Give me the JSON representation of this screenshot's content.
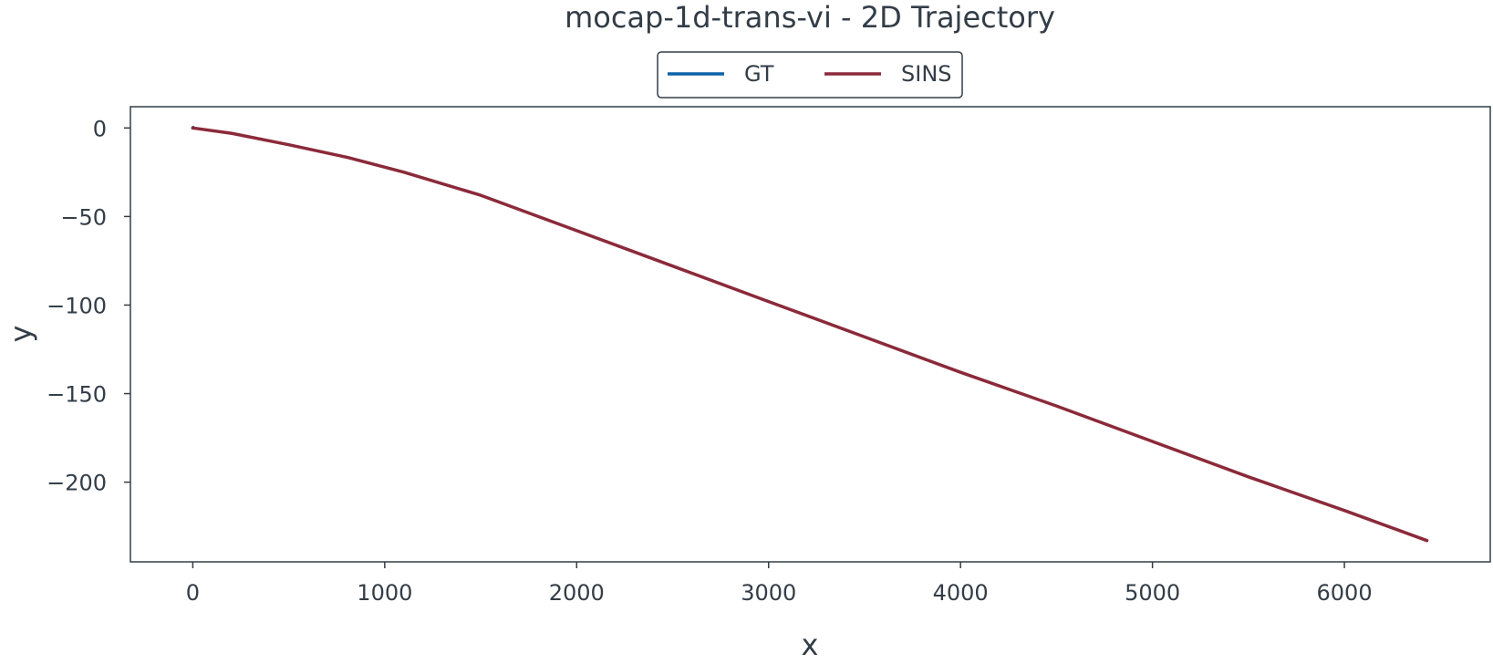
{
  "chart_data": {
    "type": "line",
    "title": "mocap-1d-trans-vi - 2D Trajectory",
    "xlabel": "x",
    "ylabel": "y",
    "xlim": [
      -325,
      6760
    ],
    "ylim": [
      -245,
      12
    ],
    "xticks": [
      0,
      1000,
      2000,
      3000,
      4000,
      5000,
      6000
    ],
    "yticks": [
      0,
      -50,
      -100,
      -150,
      -200
    ],
    "xtick_labels": [
      "0",
      "1000",
      "2000",
      "3000",
      "4000",
      "5000",
      "6000"
    ],
    "ytick_labels": [
      "0",
      "−50",
      "−100",
      "−150",
      "−200"
    ],
    "grid": false,
    "legend": "top-center, outside plot area",
    "series": [
      {
        "name": "GT",
        "color": "#0a62a8",
        "x": [
          0,
          2,
          4
        ],
        "y": [
          0,
          0.3,
          0
        ]
      },
      {
        "name": "SINS",
        "color": "#8b2a3a",
        "x": [
          0,
          200,
          500,
          800,
          1100,
          1500,
          2000,
          2500,
          3000,
          3500,
          4000,
          4500,
          5000,
          5500,
          6000,
          6430
        ],
        "y": [
          0,
          -3,
          -9.5,
          -16.5,
          -25,
          -38,
          -58,
          -78,
          -98,
          -118,
          -138,
          -157,
          -177,
          -197,
          -216,
          -233
        ]
      }
    ]
  }
}
